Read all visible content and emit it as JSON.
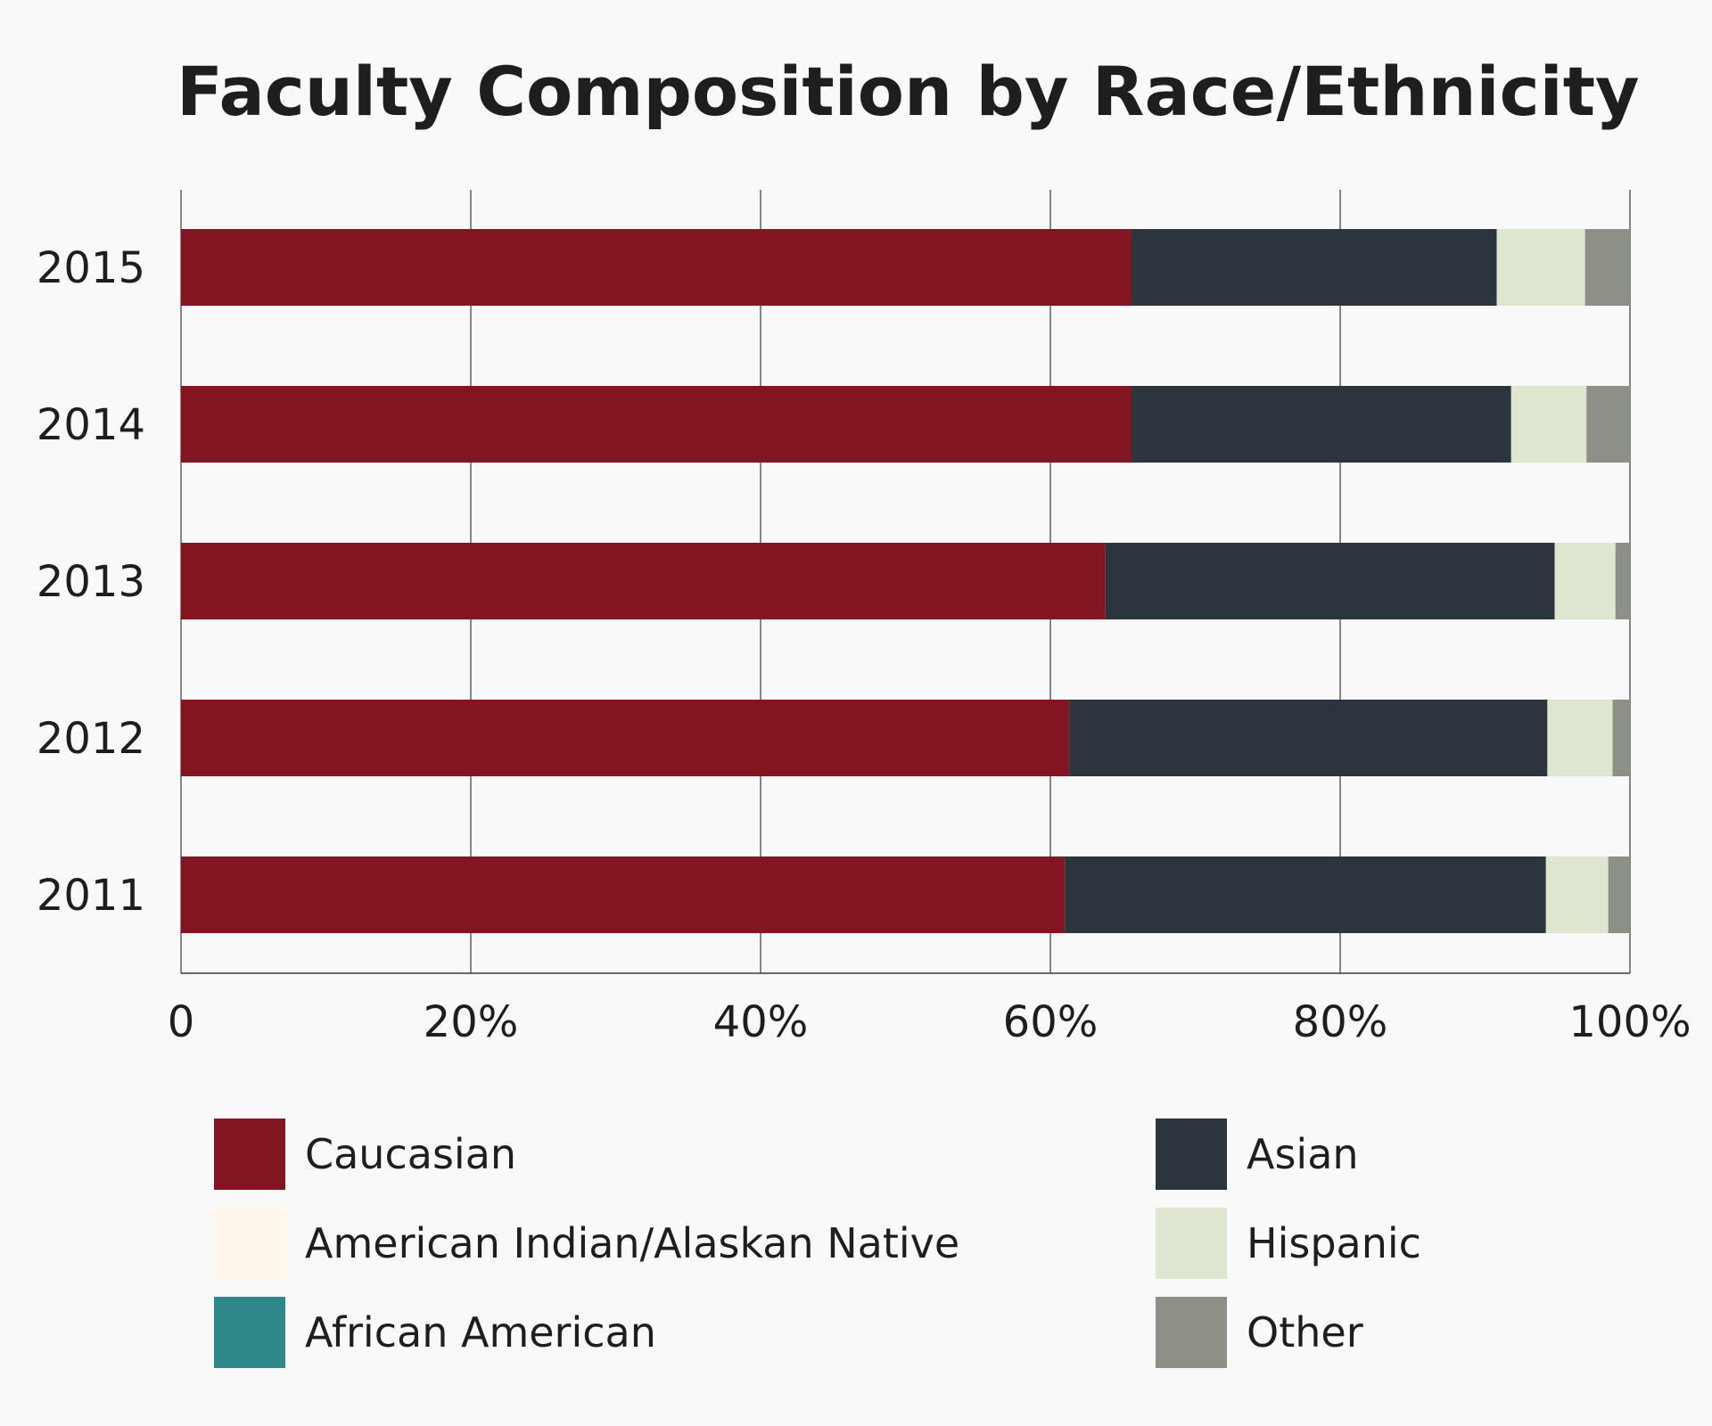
{
  "chart_data": {
    "type": "bar",
    "orientation": "horizontal",
    "stacked": true,
    "title": "Faculty Composition by Race/Ethnicity",
    "categories": [
      "2015",
      "2014",
      "2013",
      "2012",
      "2011"
    ],
    "series": [
      {
        "name": "Caucasian",
        "color": "#821520",
        "values": [
          65.6,
          65.6,
          63.8,
          61.3,
          61.0
        ]
      },
      {
        "name": "American Indian/Alaskan Native",
        "color": "#fff6ec",
        "values": [
          0.0,
          0.0,
          0.0,
          0.0,
          0.0
        ]
      },
      {
        "name": "African American",
        "color": "#2e8789",
        "values": [
          0.0,
          0.0,
          0.0,
          0.0,
          0.0
        ]
      },
      {
        "name": "Asian",
        "color": "#2c343d",
        "values": [
          25.2,
          26.2,
          31.0,
          33.0,
          33.2
        ]
      },
      {
        "name": "Hispanic",
        "color": "#dfe6d0",
        "values": [
          6.1,
          5.2,
          4.2,
          4.5,
          4.3
        ]
      },
      {
        "name": "Other",
        "color": "#8d9087",
        "values": [
          3.1,
          3.0,
          1.0,
          1.2,
          1.5
        ]
      }
    ],
    "x_ticks": [
      "0",
      "20%",
      "40%",
      "60%",
      "80%",
      "100%"
    ],
    "xlim": [
      0,
      100
    ],
    "grid": true,
    "legend_position": "bottom"
  },
  "legend_layout": [
    [
      "Caucasian",
      "Asian"
    ],
    [
      "American Indian/Alaskan Native",
      "Hispanic"
    ],
    [
      "African American",
      "Other"
    ]
  ]
}
